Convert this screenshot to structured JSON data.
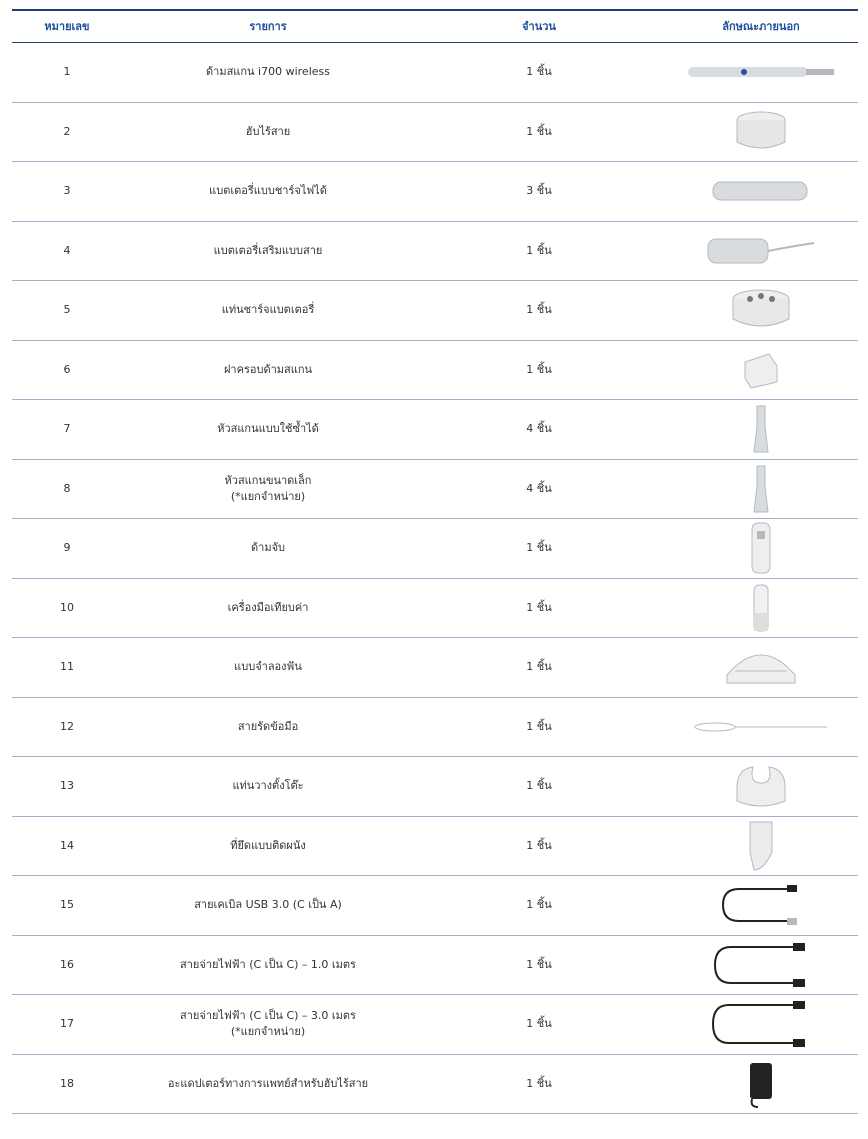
{
  "table": {
    "columns": [
      "หมายเลข",
      "รายการ",
      "จำนวน",
      "ลักษณะภายนอก"
    ],
    "rows": [
      {
        "no": "1",
        "item": "ด้ามสแกน i700 wireless",
        "qty": "1 ชิ้น"
      },
      {
        "no": "2",
        "item": "ฮับไร้สาย",
        "qty": "1 ชิ้น"
      },
      {
        "no": "3",
        "item": "แบตเตอรี่แบบชาร์จไฟได้",
        "qty": "3 ชิ้น"
      },
      {
        "no": "4",
        "item": "แบตเตอรี่เสริมแบบสาย",
        "qty": "1 ชิ้น"
      },
      {
        "no": "5",
        "item": "แท่นชาร์จแบตเตอรี่",
        "qty": "1 ชิ้น"
      },
      {
        "no": "6",
        "item": "ฝาครอบด้ามสแกน",
        "qty": "1 ชิ้น"
      },
      {
        "no": "7",
        "item": "หัวสแกนแบบใช้ซ้ำได้",
        "qty": "4 ชิ้น"
      },
      {
        "no": "8",
        "item": "หัวสแกนขนาดเล็ก",
        "note": "(*แยกจำหน่าย)",
        "qty": "4 ชิ้น"
      },
      {
        "no": "9",
        "item": "ด้ามจับ",
        "qty": "1 ชิ้น"
      },
      {
        "no": "10",
        "item": "เครื่องมือเทียบค่า",
        "qty": "1 ชิ้น"
      },
      {
        "no": "11",
        "item": "แบบจำลองฟัน",
        "qty": "1 ชิ้น"
      },
      {
        "no": "12",
        "item": "สายรัดข้อมือ",
        "qty": "1 ชิ้น"
      },
      {
        "no": "13",
        "item": "แท่นวางตั้งโต๊ะ",
        "qty": "1 ชิ้น"
      },
      {
        "no": "14",
        "item": "ที่ยึดแบบติดผนัง",
        "qty": "1 ชิ้น"
      },
      {
        "no": "15",
        "item": "สายเคเบิล USB 3.0 (C เป็น A)",
        "qty": "1 ชิ้น"
      },
      {
        "no": "16",
        "item": "สายจ่ายไฟฟ้า (C เป็น C) – 1.0 เมตร",
        "qty": "1 ชิ้น"
      },
      {
        "no": "17",
        "item": "สายจ่ายไฟฟ้า (C เป็น C) – 3.0 เมตร",
        "note": "(*แยกจำหน่าย)",
        "qty": "1 ชิ้น"
      },
      {
        "no": "18",
        "item": "อะแดปเตอร์ทางการแพทย์สำหรับฮับไร้สาย",
        "qty": "1 ชิ้น"
      }
    ]
  }
}
